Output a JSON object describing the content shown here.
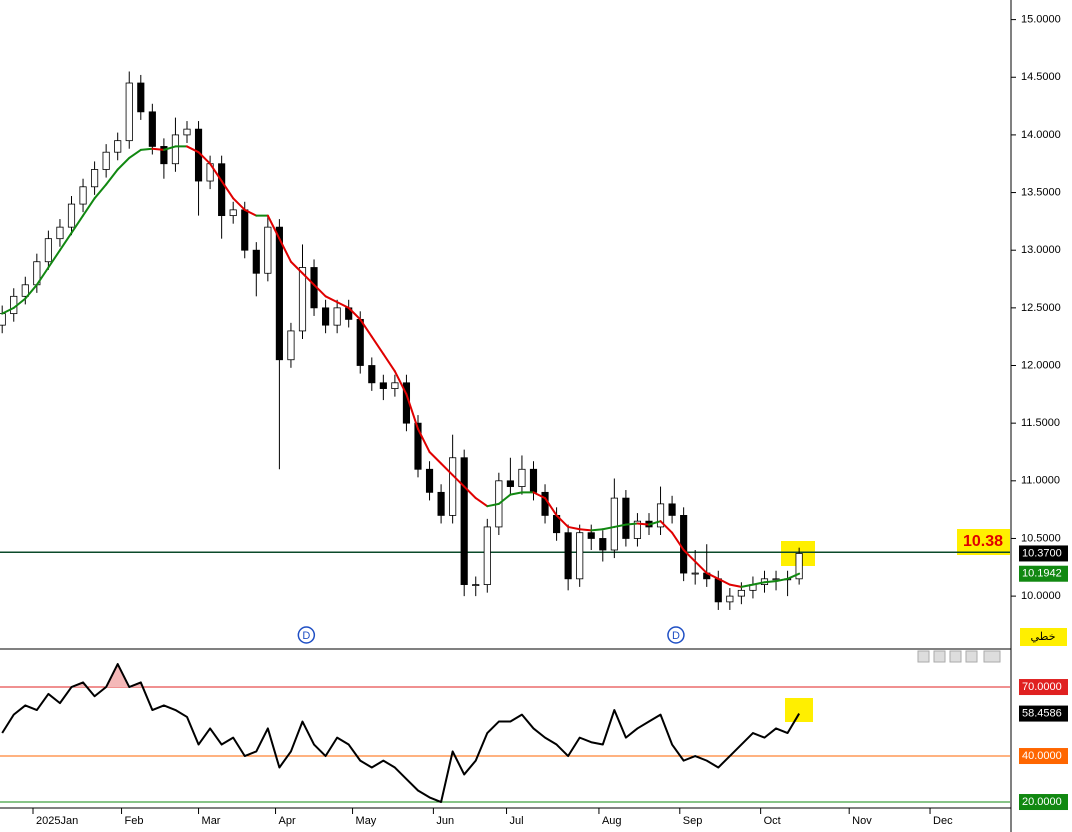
{
  "chart_data": [
    {
      "type": "candlestick",
      "x": [
        -8,
        -5,
        -2,
        1,
        4,
        7,
        10,
        13,
        16,
        19,
        22,
        25,
        28,
        31,
        34,
        37,
        40,
        43,
        46,
        49,
        52,
        55,
        58,
        61,
        64,
        67,
        70,
        73,
        76,
        79,
        82,
        85,
        88,
        91,
        94,
        97,
        100,
        103,
        106,
        109,
        112,
        115,
        118,
        121,
        124,
        127,
        130,
        133,
        136,
        139,
        142,
        145,
        148,
        151,
        154,
        157,
        160,
        163,
        166,
        169,
        172,
        175,
        178,
        181,
        184,
        187,
        190,
        193,
        196,
        199
      ],
      "candles": [
        {
          "open": 12.35,
          "high": 12.52,
          "low": 12.28,
          "close": 12.45
        },
        {
          "open": 12.45,
          "high": 12.67,
          "low": 12.38,
          "close": 12.6
        },
        {
          "open": 12.6,
          "high": 12.77,
          "low": 12.53,
          "close": 12.7
        },
        {
          "open": 12.7,
          "high": 12.97,
          "low": 12.63,
          "close": 12.9
        },
        {
          "open": 12.9,
          "high": 13.17,
          "low": 12.83,
          "close": 13.1
        },
        {
          "open": 13.1,
          "high": 13.27,
          "low": 13.03,
          "close": 13.2
        },
        {
          "open": 13.2,
          "high": 13.47,
          "low": 13.13,
          "close": 13.4
        },
        {
          "open": 13.4,
          "high": 13.62,
          "low": 13.33,
          "close": 13.55
        },
        {
          "open": 13.55,
          "high": 13.77,
          "low": 13.48,
          "close": 13.7
        },
        {
          "open": 13.7,
          "high": 13.92,
          "low": 13.63,
          "close": 13.85
        },
        {
          "open": 13.85,
          "high": 14.02,
          "low": 13.78,
          "close": 13.95
        },
        {
          "open": 13.95,
          "high": 14.55,
          "low": 13.88,
          "close": 14.45
        },
        {
          "open": 14.45,
          "high": 14.52,
          "low": 14.13,
          "close": 14.2
        },
        {
          "open": 14.2,
          "high": 14.27,
          "low": 13.83,
          "close": 13.9
        },
        {
          "open": 13.9,
          "high": 13.97,
          "low": 13.62,
          "close": 13.75
        },
        {
          "open": 13.75,
          "high": 14.15,
          "low": 13.68,
          "close": 14.0
        },
        {
          "open": 14.0,
          "high": 14.12,
          "low": 13.93,
          "close": 14.05
        },
        {
          "open": 14.05,
          "high": 14.12,
          "low": 13.3,
          "close": 13.6
        },
        {
          "open": 13.6,
          "high": 13.82,
          "low": 13.53,
          "close": 13.75
        },
        {
          "open": 13.75,
          "high": 13.82,
          "low": 13.1,
          "close": 13.3
        },
        {
          "open": 13.3,
          "high": 13.42,
          "low": 13.23,
          "close": 13.35
        },
        {
          "open": 13.35,
          "high": 13.42,
          "low": 12.93,
          "close": 13.0
        },
        {
          "open": 13.0,
          "high": 13.07,
          "low": 12.6,
          "close": 12.8
        },
        {
          "open": 12.8,
          "high": 13.3,
          "low": 12.73,
          "close": 13.2
        },
        {
          "open": 13.2,
          "high": 13.27,
          "low": 11.1,
          "close": 12.05
        },
        {
          "open": 12.05,
          "high": 12.37,
          "low": 11.98,
          "close": 12.3
        },
        {
          "open": 12.3,
          "high": 13.05,
          "low": 12.23,
          "close": 12.85
        },
        {
          "open": 12.85,
          "high": 12.92,
          "low": 12.43,
          "close": 12.5
        },
        {
          "open": 12.5,
          "high": 12.57,
          "low": 12.28,
          "close": 12.35
        },
        {
          "open": 12.35,
          "high": 12.57,
          "low": 12.28,
          "close": 12.5
        },
        {
          "open": 12.5,
          "high": 12.57,
          "low": 12.33,
          "close": 12.4
        },
        {
          "open": 12.4,
          "high": 12.47,
          "low": 11.93,
          "close": 12.0
        },
        {
          "open": 12.0,
          "high": 12.07,
          "low": 11.78,
          "close": 11.85
        },
        {
          "open": 11.85,
          "high": 11.92,
          "low": 11.7,
          "close": 11.8
        },
        {
          "open": 11.8,
          "high": 11.92,
          "low": 11.73,
          "close": 11.85
        },
        {
          "open": 11.85,
          "high": 11.92,
          "low": 11.43,
          "close": 11.5
        },
        {
          "open": 11.5,
          "high": 11.57,
          "low": 11.03,
          "close": 11.1
        },
        {
          "open": 11.1,
          "high": 11.17,
          "low": 10.83,
          "close": 10.9
        },
        {
          "open": 10.9,
          "high": 10.97,
          "low": 10.63,
          "close": 10.7
        },
        {
          "open": 10.7,
          "high": 11.4,
          "low": 10.63,
          "close": 11.2
        },
        {
          "open": 11.2,
          "high": 11.27,
          "low": 10.0,
          "close": 10.1
        },
        {
          "open": 10.1,
          "high": 10.17,
          "low": 10.0,
          "close": 10.1
        },
        {
          "open": 10.1,
          "high": 10.67,
          "low": 10.03,
          "close": 10.6
        },
        {
          "open": 10.6,
          "high": 11.07,
          "low": 10.53,
          "close": 11.0
        },
        {
          "open": 11.0,
          "high": 11.2,
          "low": 10.88,
          "close": 10.95
        },
        {
          "open": 10.95,
          "high": 11.22,
          "low": 10.88,
          "close": 11.1
        },
        {
          "open": 11.1,
          "high": 11.17,
          "low": 10.83,
          "close": 10.9
        },
        {
          "open": 10.9,
          "high": 10.97,
          "low": 10.63,
          "close": 10.7
        },
        {
          "open": 10.7,
          "high": 10.77,
          "low": 10.48,
          "close": 10.55
        },
        {
          "open": 10.55,
          "high": 10.62,
          "low": 10.05,
          "close": 10.15
        },
        {
          "open": 10.15,
          "high": 10.62,
          "low": 10.08,
          "close": 10.55
        },
        {
          "open": 10.55,
          "high": 10.62,
          "low": 10.4,
          "close": 10.5
        },
        {
          "open": 10.5,
          "high": 10.57,
          "low": 10.3,
          "close": 10.4
        },
        {
          "open": 10.4,
          "high": 11.02,
          "low": 10.33,
          "close": 10.85
        },
        {
          "open": 10.85,
          "high": 10.92,
          "low": 10.43,
          "close": 10.5
        },
        {
          "open": 10.5,
          "high": 10.72,
          "low": 10.43,
          "close": 10.65
        },
        {
          "open": 10.65,
          "high": 10.72,
          "low": 10.53,
          "close": 10.6
        },
        {
          "open": 10.6,
          "high": 10.95,
          "low": 10.53,
          "close": 10.8
        },
        {
          "open": 10.8,
          "high": 10.87,
          "low": 10.63,
          "close": 10.7
        },
        {
          "open": 10.7,
          "high": 10.77,
          "low": 10.13,
          "close": 10.2
        },
        {
          "open": 10.2,
          "high": 10.4,
          "low": 10.1,
          "close": 10.2
        },
        {
          "open": 10.2,
          "high": 10.45,
          "low": 10.08,
          "close": 10.15
        },
        {
          "open": 10.15,
          "high": 10.22,
          "low": 9.88,
          "close": 9.95
        },
        {
          "open": 9.95,
          "high": 10.07,
          "low": 9.88,
          "close": 10.0
        },
        {
          "open": 10.0,
          "high": 10.12,
          "low": 9.93,
          "close": 10.05
        },
        {
          "open": 10.05,
          "high": 10.17,
          "low": 9.98,
          "close": 10.1
        },
        {
          "open": 10.1,
          "high": 10.22,
          "low": 10.03,
          "close": 10.15
        },
        {
          "open": 10.15,
          "high": 10.22,
          "low": 10.05,
          "close": 10.15
        },
        {
          "open": 10.15,
          "high": 10.22,
          "low": 10.0,
          "close": 10.15
        },
        {
          "open": 10.15,
          "high": 10.42,
          "low": 10.1,
          "close": 10.37
        }
      ],
      "ma": {
        "values": [
          12.45,
          12.5,
          12.58,
          12.7,
          12.85,
          13.0,
          13.15,
          13.3,
          13.45,
          13.57,
          13.7,
          13.8,
          13.87,
          13.88,
          13.87,
          13.9,
          13.9,
          13.85,
          13.75,
          13.6,
          13.45,
          13.35,
          13.3,
          13.3,
          13.1,
          12.9,
          12.8,
          12.7,
          12.6,
          12.55,
          12.5,
          12.4,
          12.25,
          12.1,
          11.95,
          11.75,
          11.45,
          11.25,
          11.15,
          11.05,
          10.95,
          10.85,
          10.78,
          10.8,
          10.88,
          10.9,
          10.9,
          10.85,
          10.7,
          10.6,
          10.58,
          10.57,
          10.58,
          10.6,
          10.62,
          10.63,
          10.62,
          10.65,
          10.55,
          10.4,
          10.3,
          10.2,
          10.15,
          10.1,
          10.08,
          10.1,
          10.12,
          10.13,
          10.15,
          10.1942
        ],
        "up_color": "#118811",
        "down_color": "#e00000"
      },
      "xlim": [
        -8.57,
        253.77
      ],
      "xticks": [
        {
          "value": 0,
          "label": "2025Jan"
        },
        {
          "value": 23,
          "label": "Feb"
        },
        {
          "value": 43,
          "label": "Mar"
        },
        {
          "value": 63,
          "label": "Apr"
        },
        {
          "value": 83,
          "label": "May"
        },
        {
          "value": 104,
          "label": "Jun"
        },
        {
          "value": 123,
          "label": "Jul"
        },
        {
          "value": 147,
          "label": "Aug"
        },
        {
          "value": 168,
          "label": "Sep"
        },
        {
          "value": 189,
          "label": "Oct"
        },
        {
          "value": 212,
          "label": "Nov"
        },
        {
          "value": 233,
          "label": "Dec"
        }
      ],
      "ylim": [
        9.55,
        15.17
      ],
      "yticks": [
        {
          "value": 15,
          "label": "15.0000"
        },
        {
          "value": 14.5,
          "label": "14.5000"
        },
        {
          "value": 14,
          "label": "14.0000"
        },
        {
          "value": 13.5,
          "label": "13.5000"
        },
        {
          "value": 13,
          "label": "13.0000"
        },
        {
          "value": 12.5,
          "label": "12.5000"
        },
        {
          "value": 12,
          "label": "12.0000"
        },
        {
          "value": 11.5,
          "label": "11.5000"
        },
        {
          "value": 11,
          "label": "11.0000"
        },
        {
          "value": 10.5,
          "label": "10.5000"
        },
        {
          "value": 10,
          "label": "10.0000"
        }
      ],
      "hline": {
        "value": 10.38,
        "label": "10.38",
        "color": "#0b4a2a"
      },
      "last_price": {
        "value": 10.37,
        "label": "10.3700"
      },
      "ma_last": {
        "value": 10.1942,
        "label": "10.1942"
      },
      "markers": [
        {
          "x": 71,
          "label": "D"
        },
        {
          "x": 167,
          "label": "D"
        }
      ],
      "mode_label": "خطي"
    },
    {
      "type": "line",
      "x": [
        -8,
        -5,
        -2,
        1,
        4,
        7,
        10,
        13,
        16,
        19,
        22,
        25,
        28,
        31,
        34,
        37,
        40,
        43,
        46,
        49,
        52,
        55,
        58,
        61,
        64,
        67,
        70,
        73,
        76,
        79,
        82,
        85,
        88,
        91,
        94,
        97,
        100,
        103,
        106,
        109,
        112,
        115,
        118,
        121,
        124,
        127,
        130,
        133,
        136,
        139,
        142,
        145,
        148,
        151,
        154,
        157,
        160,
        163,
        166,
        169,
        172,
        175,
        178,
        181,
        184,
        187,
        190,
        193,
        196,
        199
      ],
      "values": [
        50,
        58,
        62,
        60,
        67,
        63,
        70,
        72,
        66,
        70,
        80,
        70,
        72,
        60,
        62,
        60,
        57,
        45,
        52,
        45,
        48,
        40,
        42,
        52,
        35,
        42,
        55,
        45,
        40,
        48,
        45,
        38,
        35,
        38,
        35,
        30,
        25,
        22,
        20,
        42,
        32,
        38,
        50,
        55,
        55,
        58,
        52,
        48,
        45,
        40,
        48,
        46,
        45,
        60,
        48,
        52,
        55,
        58,
        45,
        38,
        40,
        38,
        35,
        40,
        45,
        50,
        48,
        52,
        50,
        58.4586
      ],
      "color": "#000000",
      "overbought_fill": "#f4b8b8",
      "ylim": [
        17.4,
        86.1
      ],
      "levels": [
        {
          "value": 70,
          "label": "70.0000",
          "color": "#e02020"
        },
        {
          "value": 40,
          "label": "40.0000",
          "color": "#ff6600"
        },
        {
          "value": 20,
          "label": "20.0000",
          "color": "#118811"
        }
      ],
      "last_value": {
        "value": 58.4586,
        "label": "58.4586"
      }
    }
  ]
}
